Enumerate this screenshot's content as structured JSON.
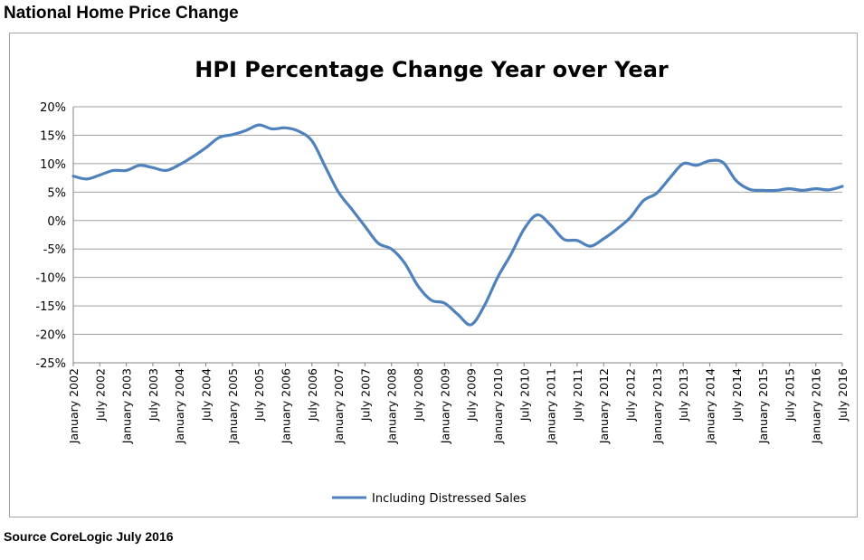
{
  "page": {
    "heading": "National Home Price Change",
    "source": "Source CoreLogic July 2016"
  },
  "chart_data": {
    "type": "line",
    "title": "HPI Percentage Change Year over Year",
    "xlabel": "",
    "ylabel": "",
    "ylim": [
      -25,
      20
    ],
    "y_ticks": [
      "20%",
      "15%",
      "10%",
      "5%",
      "0%",
      "-5%",
      "-10%",
      "-15%",
      "-20%",
      "-25%"
    ],
    "x_tick_labels": [
      "January 2002",
      "July 2002",
      "January 2003",
      "July 2003",
      "January 2004",
      "July 2004",
      "January 2005",
      "July 2005",
      "January 2006",
      "July 2006",
      "January 2007",
      "July 2007",
      "January 2008",
      "July 2008",
      "January 2009",
      "July 2009",
      "January 2010",
      "July 2010",
      "January 2011",
      "July 2011",
      "January 2012",
      "July 2012",
      "January 2013",
      "July 2013",
      "January 2014",
      "July 2014",
      "January 2015",
      "July 2015",
      "January 2016",
      "July 2016"
    ],
    "grid": true,
    "legend_position": "bottom",
    "series": [
      {
        "name": "Including Distressed Sales",
        "color": "#4f81bd",
        "points": [
          [
            "2002-01",
            7.8
          ],
          [
            "2002-04",
            7.3
          ],
          [
            "2002-07",
            8.0
          ],
          [
            "2002-10",
            8.8
          ],
          [
            "2003-01",
            8.8
          ],
          [
            "2003-04",
            9.7
          ],
          [
            "2003-07",
            9.3
          ],
          [
            "2003-10",
            8.8
          ],
          [
            "2004-01",
            9.8
          ],
          [
            "2004-04",
            11.2
          ],
          [
            "2004-07",
            12.8
          ],
          [
            "2004-10",
            14.6
          ],
          [
            "2005-01",
            15.1
          ],
          [
            "2005-04",
            15.8
          ],
          [
            "2005-07",
            16.8
          ],
          [
            "2005-10",
            16.1
          ],
          [
            "2006-01",
            16.3
          ],
          [
            "2006-04",
            15.7
          ],
          [
            "2006-07",
            14.0
          ],
          [
            "2006-10",
            9.5
          ],
          [
            "2007-01",
            5.0
          ],
          [
            "2007-04",
            2.0
          ],
          [
            "2007-07",
            -1.0
          ],
          [
            "2007-10",
            -4.0
          ],
          [
            "2008-01",
            -5.0
          ],
          [
            "2008-04",
            -7.5
          ],
          [
            "2008-07",
            -11.5
          ],
          [
            "2008-10",
            -14.0
          ],
          [
            "2009-01",
            -14.5
          ],
          [
            "2009-04",
            -16.5
          ],
          [
            "2009-07",
            -18.3
          ],
          [
            "2009-10",
            -15.0
          ],
          [
            "2010-01",
            -10.0
          ],
          [
            "2010-04",
            -6.0
          ],
          [
            "2010-07",
            -1.5
          ],
          [
            "2010-10",
            1.0
          ],
          [
            "2011-01",
            -0.8
          ],
          [
            "2011-04",
            -3.3
          ],
          [
            "2011-07",
            -3.5
          ],
          [
            "2011-10",
            -4.5
          ],
          [
            "2012-01",
            -3.2
          ],
          [
            "2012-04",
            -1.5
          ],
          [
            "2012-07",
            0.5
          ],
          [
            "2012-10",
            3.5
          ],
          [
            "2013-01",
            4.8
          ],
          [
            "2013-04",
            7.5
          ],
          [
            "2013-07",
            10.0
          ],
          [
            "2013-10",
            9.7
          ],
          [
            "2014-01",
            10.5
          ],
          [
            "2014-04",
            10.2
          ],
          [
            "2014-07",
            7.0
          ],
          [
            "2014-10",
            5.5
          ],
          [
            "2015-01",
            5.3
          ],
          [
            "2015-04",
            5.3
          ],
          [
            "2015-07",
            5.6
          ],
          [
            "2015-10",
            5.3
          ],
          [
            "2016-01",
            5.6
          ],
          [
            "2016-04",
            5.4
          ],
          [
            "2016-07",
            6.0
          ]
        ]
      }
    ]
  }
}
